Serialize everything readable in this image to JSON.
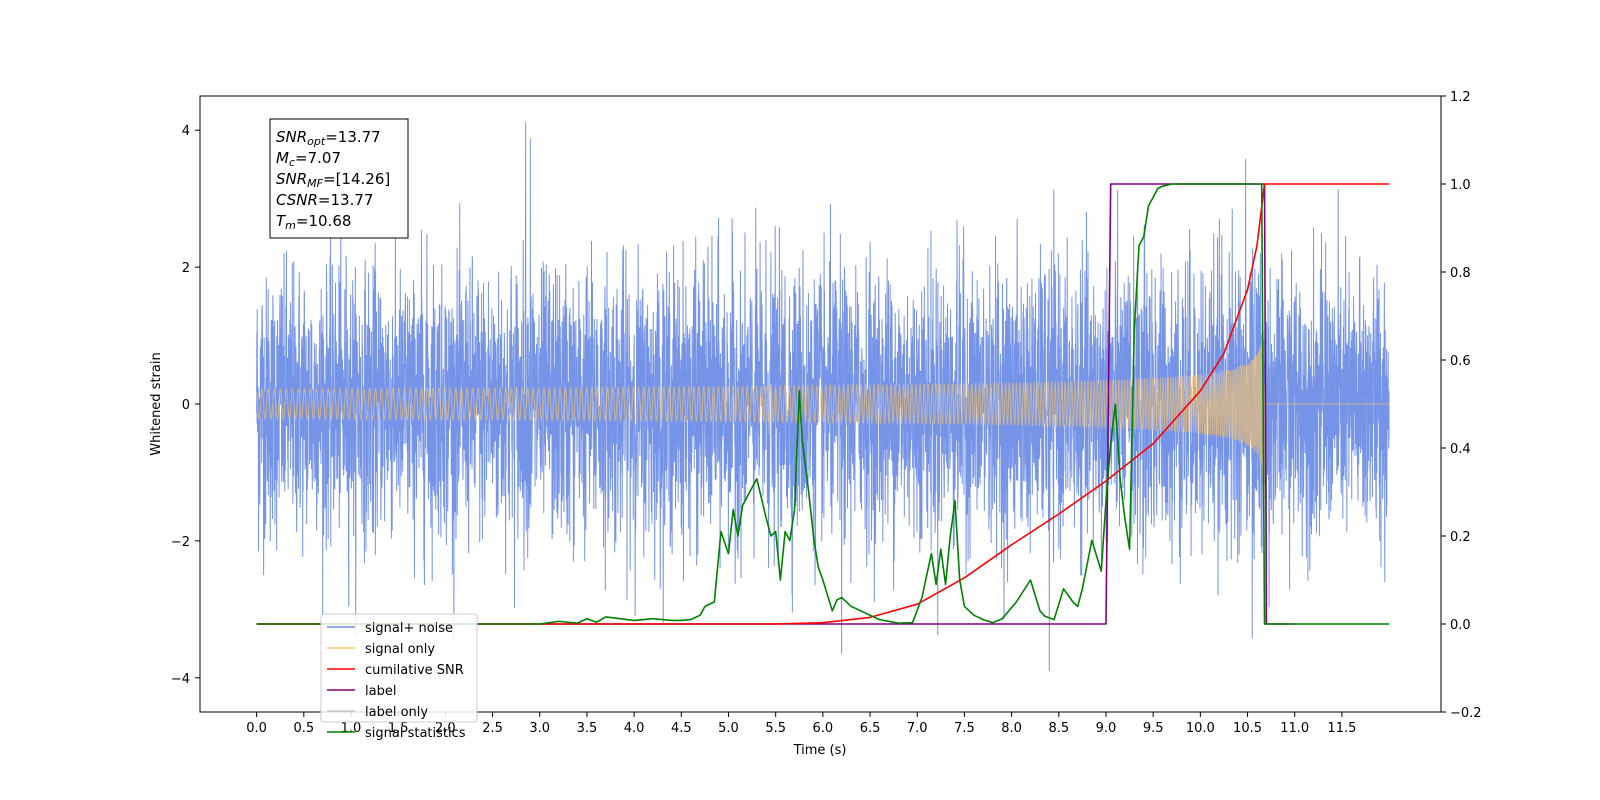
{
  "chart_data": {
    "type": "line",
    "title": "",
    "xlabel": "Time (s)",
    "ylabel": "Whitened strain",
    "ylabel_right": "",
    "xlim": [
      -0.6,
      12.55
    ],
    "ylim": [
      -4.5,
      4.5
    ],
    "ylim_right": [
      -0.2,
      1.2
    ],
    "x_ticks": [
      "0.0",
      "0.5",
      "1.0",
      "1.5",
      "2.0",
      "2.5",
      "3.0",
      "3.5",
      "4.0",
      "4.5",
      "5.0",
      "5.5",
      "6.0",
      "6.5",
      "7.0",
      "7.5",
      "8.0",
      "8.5",
      "9.0",
      "9.5",
      "10.0",
      "10.5",
      "11.0",
      "11.5"
    ],
    "y_ticks": [
      -4,
      -2,
      0,
      2,
      4
    ],
    "y_ticks_right": [
      "−0.2",
      "0.0",
      "0.2",
      "0.4",
      "0.6",
      "0.8",
      "1.0",
      "1.2"
    ],
    "grid": false,
    "legend_position": "lower-left",
    "legend": [
      {
        "name": "signal+ noise",
        "color": "#6f8ee6"
      },
      {
        "name": "signal only",
        "color": "#ffc766"
      },
      {
        "name": "cumilative SNR",
        "color": "#ff0000"
      },
      {
        "name": "label",
        "color": "#800080"
      },
      {
        "name": "label only",
        "color": "#cccccc"
      },
      {
        "name": "signal statistics",
        "color": "#008000"
      }
    ],
    "annotation": [
      {
        "base": "SNR",
        "sub": "opt",
        "value": "=13.77"
      },
      {
        "base": "M",
        "sub": "c",
        "value": "=7.07"
      },
      {
        "base": "SNR",
        "sub": "MF",
        "value": "=[14.26]"
      },
      {
        "base": "CSNR",
        "sub": "",
        "value": "=13.77"
      },
      {
        "base": "T",
        "sub": "m",
        "value": "=10.68"
      }
    ],
    "series": [
      {
        "name": "signal+ noise",
        "axis": "left",
        "color": "#6f8ee6",
        "x_range": [
          0.0,
          12.0
        ],
        "envelope_typical": 1.5,
        "peak_values": [
          {
            "x": 2.85,
            "y": 4.12
          },
          {
            "x": 2.9,
            "y": 3.88
          },
          {
            "x": 10.48,
            "y": 3.58
          },
          {
            "x": 8.4,
            "y": -3.9
          },
          {
            "x": 6.2,
            "y": -3.65
          },
          {
            "x": 10.55,
            "y": -3.42
          }
        ]
      },
      {
        "name": "signal only",
        "axis": "left",
        "color": "#ffc766",
        "chirp_end": 10.68,
        "amplitude_at_merger": 1.4
      },
      {
        "name": "cumilative SNR",
        "axis": "right",
        "color": "#ff0000",
        "x": [
          0.0,
          5.5,
          6.0,
          6.5,
          7.0,
          7.5,
          8.0,
          8.5,
          9.0,
          9.5,
          10.0,
          10.25,
          10.5,
          10.6,
          10.68,
          10.69,
          12.0
        ],
        "y": [
          0.0,
          0.0,
          0.003,
          0.015,
          0.045,
          0.105,
          0.18,
          0.25,
          0.325,
          0.41,
          0.53,
          0.615,
          0.76,
          0.86,
          1.0,
          1.0,
          1.0
        ]
      },
      {
        "name": "label",
        "axis": "right",
        "color": "#800080",
        "x": [
          0.0,
          9.0,
          9.05,
          10.68,
          10.7,
          11.0
        ],
        "y": [
          0.0,
          0.0,
          1.0,
          1.0,
          0.0,
          0.0
        ]
      },
      {
        "name": "signal statistics",
        "axis": "right",
        "color": "#008000",
        "x": [
          0.0,
          2.5,
          3.0,
          3.2,
          3.4,
          3.5,
          3.6,
          3.7,
          4.0,
          4.2,
          4.4,
          4.5,
          4.6,
          4.7,
          4.75,
          4.85,
          4.92,
          5.0,
          5.05,
          5.1,
          5.15,
          5.2,
          5.3,
          5.4,
          5.45,
          5.5,
          5.55,
          5.6,
          5.65,
          5.7,
          5.75,
          5.78,
          5.85,
          5.9,
          5.95,
          6.0,
          6.1,
          6.15,
          6.2,
          6.3,
          6.4,
          6.6,
          6.8,
          6.95,
          7.05,
          7.15,
          7.2,
          7.25,
          7.3,
          7.35,
          7.4,
          7.45,
          7.5,
          7.6,
          7.7,
          7.8,
          7.9,
          8.05,
          8.2,
          8.3,
          8.35,
          8.45,
          8.55,
          8.65,
          8.7,
          8.75,
          8.85,
          8.95,
          9.0,
          9.05,
          9.1,
          9.15,
          9.2,
          9.25,
          9.3,
          9.35,
          9.4,
          9.45,
          9.5,
          9.55,
          9.6,
          9.7,
          9.8,
          9.9,
          10.0,
          10.3,
          10.6,
          10.65,
          10.68,
          10.72,
          12.0
        ],
        "y": [
          0.0,
          0.0,
          0.0,
          0.006,
          0.002,
          0.012,
          0.004,
          0.016,
          0.008,
          0.012,
          0.008,
          0.008,
          0.01,
          0.02,
          0.04,
          0.05,
          0.21,
          0.16,
          0.26,
          0.2,
          0.27,
          0.29,
          0.33,
          0.24,
          0.2,
          0.21,
          0.1,
          0.21,
          0.19,
          0.26,
          0.53,
          0.42,
          0.3,
          0.2,
          0.13,
          0.1,
          0.03,
          0.055,
          0.06,
          0.04,
          0.03,
          0.01,
          0.002,
          0.003,
          0.06,
          0.16,
          0.09,
          0.17,
          0.09,
          0.2,
          0.28,
          0.1,
          0.04,
          0.02,
          0.01,
          0.003,
          0.012,
          0.05,
          0.1,
          0.03,
          0.018,
          0.01,
          0.08,
          0.05,
          0.04,
          0.08,
          0.19,
          0.12,
          0.28,
          0.41,
          0.5,
          0.33,
          0.24,
          0.17,
          0.67,
          0.86,
          0.88,
          0.95,
          0.97,
          0.99,
          0.995,
          1.0,
          1.0,
          1.0,
          1.0,
          1.0,
          1.0,
          1.0,
          0.0,
          0.0,
          0.0
        ]
      }
    ]
  }
}
